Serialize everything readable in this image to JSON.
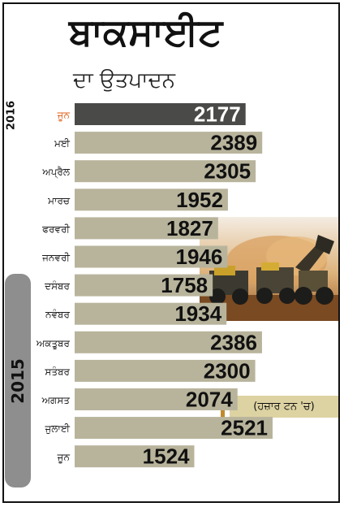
{
  "title": "ਬਾਕਸਾਈਟ",
  "subtitle": "ਦਾ ਉਤਪਾਦਨ",
  "year_labels": {
    "y2016": "2016",
    "y2015": "2015"
  },
  "unit_note": "(ਹਜ਼ਾਰ ਟਨ 'ਚ)",
  "colors": {
    "bar": "#b8b49c",
    "highlight_bar": "#4a4a48",
    "highlight_label": "#e0631b",
    "label": "#1a1a1a",
    "value_dark": "#111111",
    "value_light": "#ffffff"
  },
  "chart_data": {
    "type": "bar",
    "orientation": "horizontal",
    "title": "ਬਾਕਸਾਈਟ",
    "subtitle": "ਦਾ ਉਤਪਾਦਨ",
    "categories": [
      "ਜੂਨ",
      "ਮਈ",
      "ਅਪ੍ਰੈਲ",
      "ਮਾਰਚ",
      "ਫਰਵਰੀ",
      "ਜਨਵਰੀ",
      "ਦਸੰਬਰ",
      "ਨਵੰਬਰ",
      "ਅਕਤੂਬਰ",
      "ਸਤੰਬਰ",
      "ਅਗਸਤ",
      "ਜੁਲਾਈ",
      "ਜੂਨ"
    ],
    "values": [
      2177,
      2389,
      2305,
      1952,
      1827,
      1946,
      1758,
      1934,
      2386,
      2300,
      2074,
      2521,
      1524
    ],
    "highlight_index": 0,
    "unit": "(ਹਜ਼ਾਰ ਟਨ 'ਚ)",
    "xlim": [
      0,
      2521
    ],
    "grid": false,
    "legend": "none"
  }
}
